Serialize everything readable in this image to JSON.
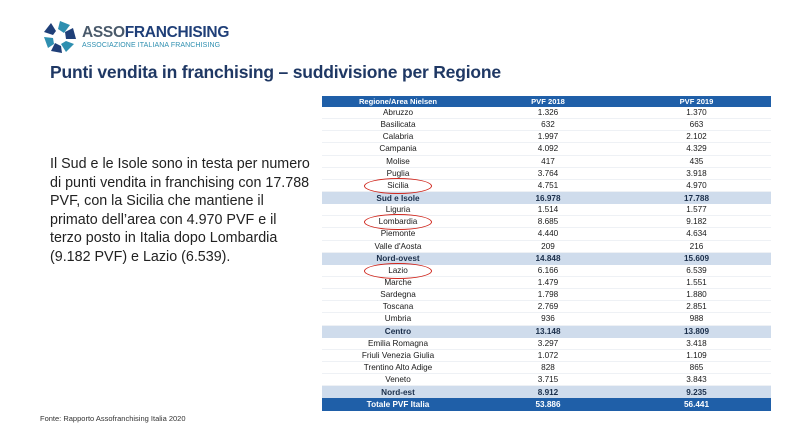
{
  "brand": {
    "part1": "ASSO",
    "part2": "FRANCHISING",
    "tagline": "ASSOCIAZIONE ITALIANA FRANCHISING",
    "colors": {
      "primary": "#1f3f78",
      "accent": "#2e8fb0",
      "gray": "#4a5a6b"
    }
  },
  "title": "Punti vendita in franchising – suddivisione per Regione",
  "summary": "Il Sud e le Isole sono in testa per numero di punti vendita in franchising con 17.788 PVF, con la Sicilia che mantiene il primato dell’area con 4.970 PVF e il terzo posto in Italia dopo Lombardia (9.182 PVF) e Lazio (6.539).",
  "source": "Fonte: Rapporto Assofranchising Italia 2020",
  "table": {
    "headers": [
      "Regione/Area Nielsen",
      "PVF 2018",
      "PVF 2019"
    ],
    "rows": [
      {
        "name": "Abruzzo",
        "v2018": "1.326",
        "v2019": "1.370",
        "type": "plain"
      },
      {
        "name": "Basilicata",
        "v2018": "632",
        "v2019": "663",
        "type": "plain"
      },
      {
        "name": "Calabria",
        "v2018": "1.997",
        "v2019": "2.102",
        "type": "plain"
      },
      {
        "name": "Campania",
        "v2018": "4.092",
        "v2019": "4.329",
        "type": "plain"
      },
      {
        "name": "Molise",
        "v2018": "417",
        "v2019": "435",
        "type": "plain"
      },
      {
        "name": "Puglia",
        "v2018": "3.764",
        "v2019": "3.918",
        "type": "plain"
      },
      {
        "name": "Sicilia",
        "v2018": "4.751",
        "v2019": "4.970",
        "type": "plain"
      },
      {
        "name": "Sud e Isole",
        "v2018": "16.978",
        "v2019": "17.788",
        "type": "sub"
      },
      {
        "name": "Liguria",
        "v2018": "1.514",
        "v2019": "1.577",
        "type": "plain"
      },
      {
        "name": "Lombardia",
        "v2018": "8.685",
        "v2019": "9.182",
        "type": "plain"
      },
      {
        "name": "Piemonte",
        "v2018": "4.440",
        "v2019": "4.634",
        "type": "plain"
      },
      {
        "name": "Valle d'Aosta",
        "v2018": "209",
        "v2019": "216",
        "type": "plain"
      },
      {
        "name": "Nord-ovest",
        "v2018": "14.848",
        "v2019": "15.609",
        "type": "sub"
      },
      {
        "name": "Lazio",
        "v2018": "6.166",
        "v2019": "6.539",
        "type": "plain"
      },
      {
        "name": "Marche",
        "v2018": "1.479",
        "v2019": "1.551",
        "type": "plain"
      },
      {
        "name": "Sardegna",
        "v2018": "1.798",
        "v2019": "1.880",
        "type": "plain"
      },
      {
        "name": "Toscana",
        "v2018": "2.769",
        "v2019": "2.851",
        "type": "plain"
      },
      {
        "name": "Umbria",
        "v2018": "936",
        "v2019": "988",
        "type": "plain"
      },
      {
        "name": "Centro",
        "v2018": "13.148",
        "v2019": "13.809",
        "type": "sub"
      },
      {
        "name": "Emilia Romagna",
        "v2018": "3.297",
        "v2019": "3.418",
        "type": "plain"
      },
      {
        "name": "Friuli Venezia Giulia",
        "v2018": "1.072",
        "v2019": "1.109",
        "type": "plain"
      },
      {
        "name": "Trentino Alto Adige",
        "v2018": "828",
        "v2019": "865",
        "type": "plain"
      },
      {
        "name": "Veneto",
        "v2018": "3.715",
        "v2019": "3.843",
        "type": "plain"
      },
      {
        "name": "Nord-est",
        "v2018": "8.912",
        "v2019": "9.235",
        "type": "sub"
      },
      {
        "name": "Totale PVF Italia",
        "v2018": "53.886",
        "v2019": "56.441",
        "type": "total"
      }
    ]
  },
  "highlighted_regions": [
    "Sicilia",
    "Lombardia",
    "Lazio"
  ],
  "highlight_color": "#d0271d"
}
